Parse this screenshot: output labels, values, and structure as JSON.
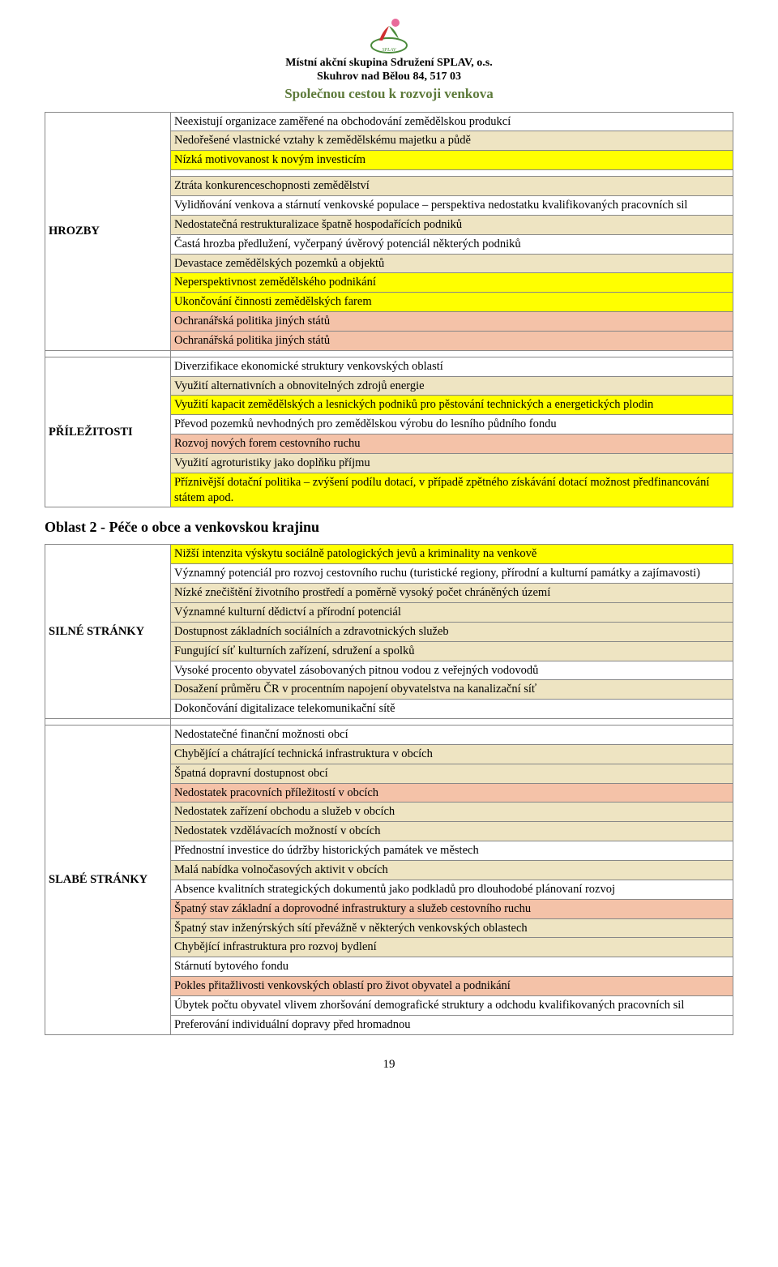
{
  "colors": {
    "yellow": "#ffff00",
    "beige": "#eee4c2",
    "salmon": "#f4c2a8",
    "green_text": "#5d7a3a",
    "border": "#888888",
    "logo_green": "#4a8a3a",
    "logo_red": "#d03030",
    "logo_pink": "#e86a9a"
  },
  "header": {
    "org1": "Místní akční skupina Sdružení SPLAV, o.s.",
    "org2": "Skuhrov nad Bělou 84, 517 03",
    "motto": "Společnou cestou k rozvoji venkova"
  },
  "section1": {
    "hrozby_label": "HROZBY",
    "prilezitosti_label": "PŘÍLEŽITOSTI",
    "intro_rows": [
      {
        "text": "Neexistují organizace zaměřené na obchodování zemědělskou produkcí",
        "bg": "#ffffff"
      },
      {
        "text": "Nedořešené vlastnické vztahy k zemědělskému majetku a půdě",
        "bg": "#eee4c2"
      },
      {
        "text": "Nízká motivovanost k novým  investicím",
        "bg": "#ffff00"
      }
    ],
    "hrozby_rows": [
      {
        "text": "Ztráta konkurenceschopnosti zemědělství",
        "bg": "#eee4c2"
      },
      {
        "text": "Vylidňování venkova a stárnutí venkovské populace – perspektiva nedostatku kvalifikovaných pracovních sil",
        "bg": "#ffffff"
      },
      {
        "text": "Nedostatečná restrukturalizace špatně hospodařících podniků",
        "bg": "#eee4c2"
      },
      {
        "text": "Častá hrozba předlužení, vyčerpaný úvěrový potenciál některých podniků",
        "bg": "#ffffff"
      },
      {
        "text": "Devastace zemědělských pozemků a objektů",
        "bg": "#eee4c2"
      },
      {
        "text": "Neperspektivnost zemědělského podnikání",
        "bg": "#ffff00"
      },
      {
        "text": "Ukončování činnosti zemědělských farem",
        "bg": "#ffff00"
      },
      {
        "text": "Ochranářská politika  jiných států",
        "bg": "#f4c2a8"
      },
      {
        "text": "Ochranářská politika  jiných států",
        "bg": "#f4c2a8"
      }
    ],
    "prilezitosti_rows": [
      {
        "text": "Diverzifikace ekonomické struktury venkovských oblastí",
        "bg": "#ffffff"
      },
      {
        "text": "Využití alternativních a obnovitelných zdrojů energie",
        "bg": "#eee4c2"
      },
      {
        "text": "Využití kapacit zemědělských a lesnických podniků pro pěstování technických a energetických plodin",
        "bg": "#ffff00"
      },
      {
        "text": "Převod pozemků nevhodných pro zemědělskou výrobu do lesního půdního fondu",
        "bg": "#ffffff"
      },
      {
        "text": "Rozvoj nových forem cestovního ruchu",
        "bg": "#f4c2a8"
      },
      {
        "text": "Využití agroturistiky jako doplňku příjmu",
        "bg": "#eee4c2"
      },
      {
        "text": "Příznivější dotační politika – zvýšení podílu dotací, v případě zpětného získávání dotací možnost předfinancování státem apod.",
        "bg": "#ffff00"
      }
    ]
  },
  "oblast2_heading": "Oblast 2 - Péče o obce a venkovskou krajinu",
  "section2": {
    "silne_label": "SILNÉ STRÁNKY",
    "slabe_label": "SLABÉ STRÁNKY",
    "silne_rows": [
      {
        "text": "Nižší intenzita výskytu sociálně patologických jevů a kriminality na venkově",
        "bg": "#ffff00"
      },
      {
        "text": "Významný potenciál pro rozvoj cestovního ruchu (turistické regiony, přírodní a kulturní památky a zajímavosti)",
        "bg": "#ffffff"
      },
      {
        "text": "Nízké znečištění životního prostředí a poměrně vysoký počet chráněných území",
        "bg": "#eee4c2"
      },
      {
        "text": "Významné kulturní dědictví a přírodní potenciál",
        "bg": "#eee4c2"
      },
      {
        "text": "Dostupnost základních sociálních a zdravotnických služeb",
        "bg": "#eee4c2"
      },
      {
        "text": "Fungující síť kulturních zařízení, sdružení a spolků",
        "bg": "#eee4c2"
      },
      {
        "text": "Vysoké procento obyvatel  zásobovaných pitnou vodou z veřejných vodovodů",
        "bg": "#ffffff"
      },
      {
        "text": "Dosažení průměru ČR v procentním napojení  obyvatelstva na kanalizační síť",
        "bg": "#eee4c2"
      },
      {
        "text": "Dokončování digitalizace telekomunikační sítě",
        "bg": "#ffffff"
      }
    ],
    "slabe_rows": [
      {
        "text": "Nedostatečné finanční možnosti obcí",
        "bg": "#ffffff"
      },
      {
        "text": "Chybějící a chátrající technická infrastruktura v obcích",
        "bg": "#eee4c2"
      },
      {
        "text": "Špatná dopravní dostupnost obcí",
        "bg": "#eee4c2"
      },
      {
        "text": "Nedostatek pracovních příležitostí v obcích",
        "bg": "#f4c2a8"
      },
      {
        "text": "Nedostatek zařízení obchodu a služeb v obcích",
        "bg": "#eee4c2"
      },
      {
        "text": "Nedostatek vzdělávacích možností v obcích",
        "bg": "#eee4c2"
      },
      {
        "text": "Přednostní investice do údržby historických památek ve městech",
        "bg": "#ffffff"
      },
      {
        "text": "Malá nabídka volnočasových aktivit v obcích",
        "bg": "#eee4c2"
      },
      {
        "text": " Absence kvalitních strategických dokumentů jako podkladů pro dlouhodobé plánovaní rozvoj",
        "bg": "#ffffff"
      },
      {
        "text": " Špatný stav základní a doprovodné infrastruktury a služeb cestovního ruchu",
        "bg": "#f4c2a8"
      },
      {
        "text": " Špatný stav inženýrských sítí převážně v některých venkovských oblastech",
        "bg": "#eee4c2"
      },
      {
        "text": " Chybějící infrastruktura pro rozvoj bydlení",
        "bg": "#eee4c2"
      },
      {
        "text": " Stárnutí bytového fondu",
        "bg": "#ffffff"
      },
      {
        "text": " Pokles přitažlivosti venkovských oblastí pro život obyvatel a podnikání",
        "bg": "#f4c2a8"
      },
      {
        "text": " Úbytek počtu obyvatel vlivem zhoršování demografické struktury a odchodu kvalifikovaných pracovních sil",
        "bg": "#ffffff"
      },
      {
        "text": " Preferování individuální dopravy před hromadnou",
        "bg": "#ffffff"
      }
    ]
  },
  "page_number": "19"
}
